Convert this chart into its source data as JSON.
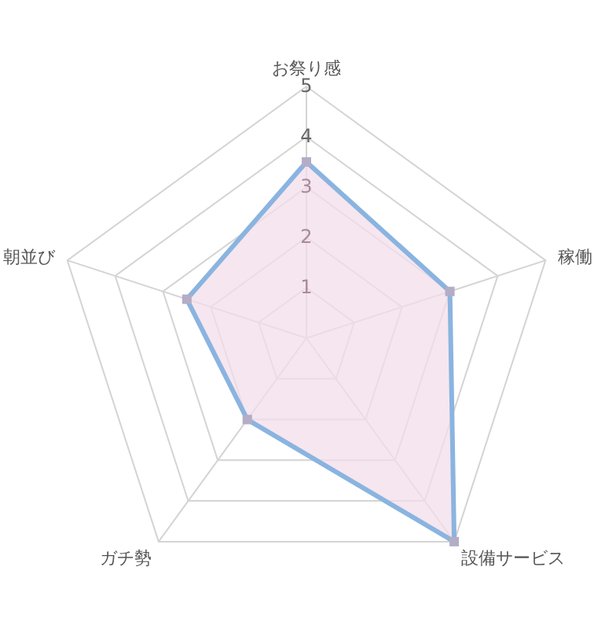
{
  "chart_data": {
    "type": "radar",
    "categories": [
      "お祭り感",
      "稼働",
      "設備サービス",
      "ガチ勢",
      "朝並び"
    ],
    "series": [
      {
        "color": "#8ab4e0",
        "values": [
          3.5,
          3,
          5,
          2,
          2.5
        ]
      }
    ],
    "ylim": [
      0,
      5
    ],
    "yticks": [
      1,
      2,
      3,
      4,
      5
    ],
    "grid": true,
    "marker": "square"
  }
}
